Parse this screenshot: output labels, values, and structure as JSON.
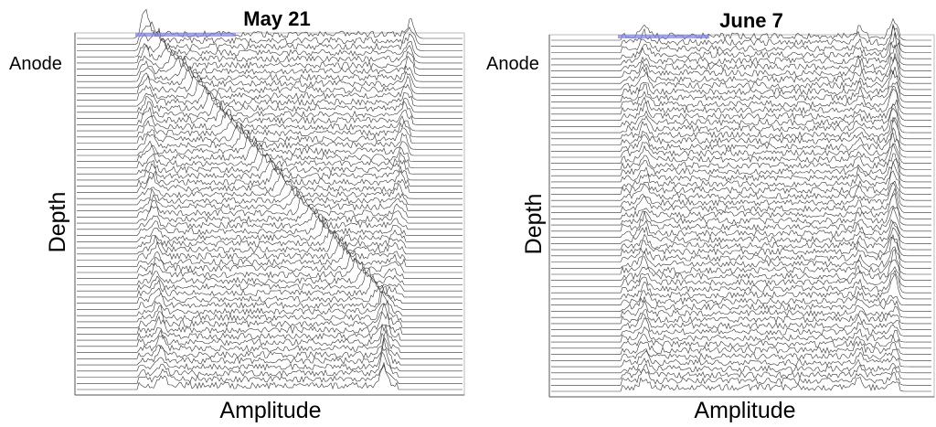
{
  "chart_data": [
    {
      "type": "waterfall",
      "title": "May 21",
      "annotation": "Anode",
      "ylabel": "Depth",
      "xlabel": "Amplitude"
    },
    {
      "type": "waterfall",
      "title": "June 7",
      "annotation": "Anode",
      "ylabel": "Depth",
      "xlabel": "Amplitude"
    }
  ]
}
